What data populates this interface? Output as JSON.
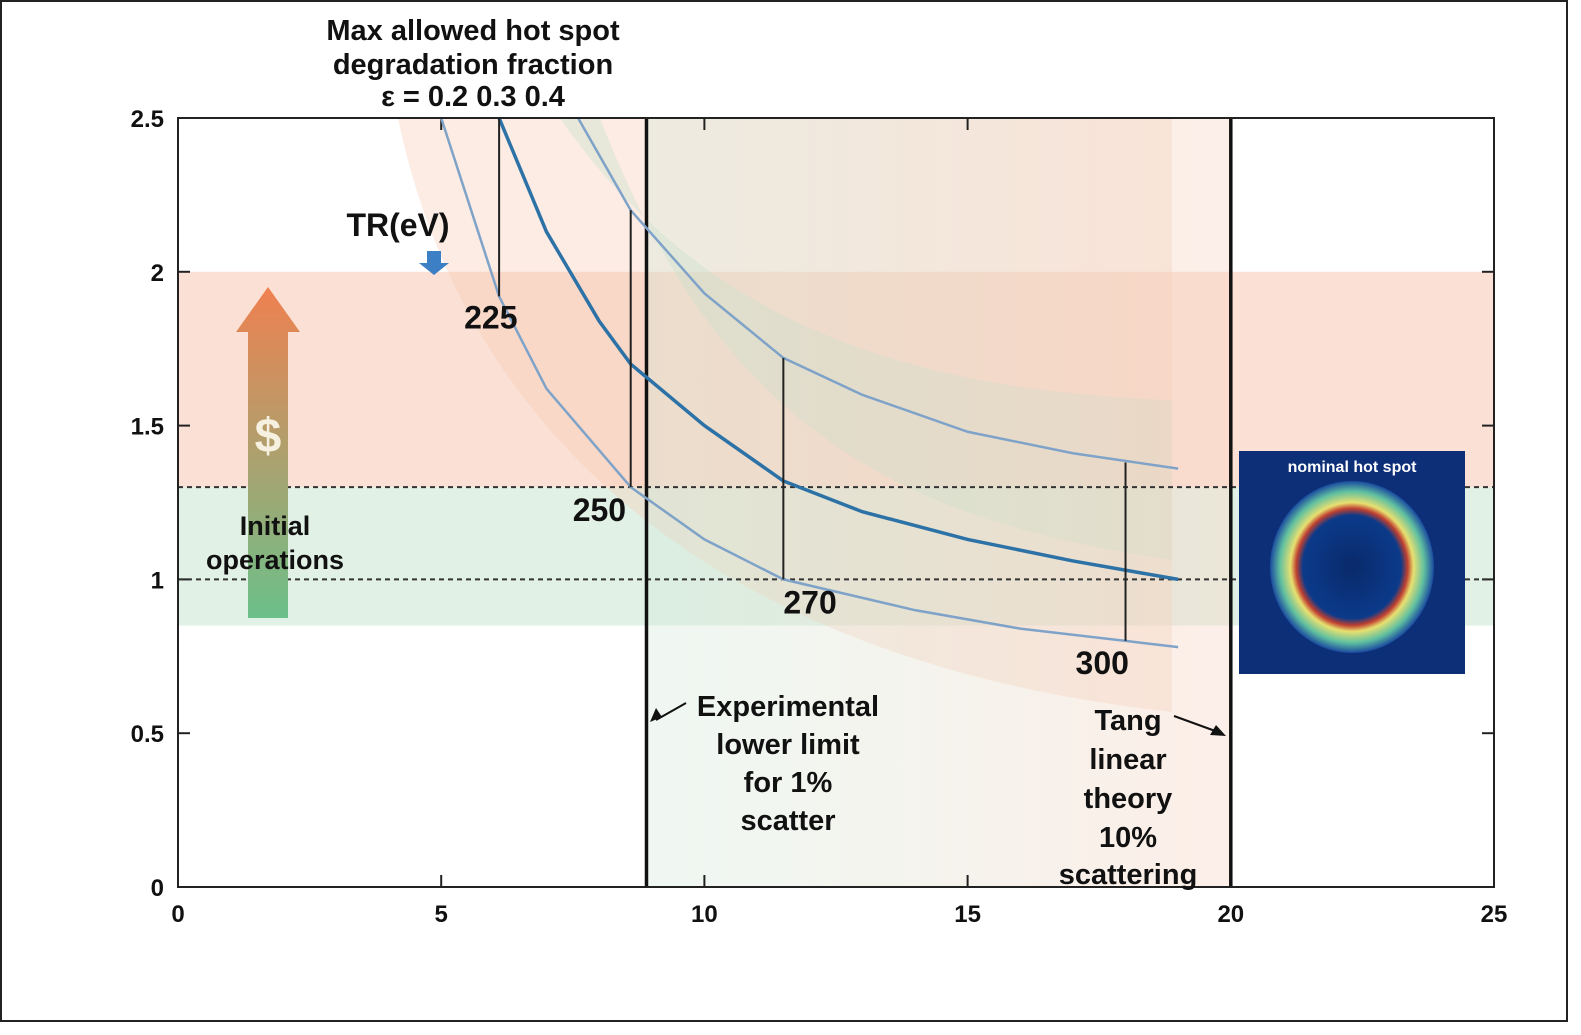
{
  "chart_data": {
    "type": "line",
    "title": [
      "Max allowed hot spot",
      "degradation fraction",
      "ε = 0.2  0.3  0.4"
    ],
    "tr_title": "TR(eV)",
    "xlim": [
      0,
      25
    ],
    "xticks": [
      0,
      5,
      10,
      15,
      20,
      25
    ],
    "ylim": [
      0,
      2.5
    ],
    "yticks": [
      0,
      0.5,
      1,
      1.5,
      2,
      2.5
    ],
    "series": [
      {
        "color": "#7fa3c8",
        "width": 2.5,
        "x": [
          5,
          6.1,
          7,
          8.6,
          10,
          11.5,
          14,
          16,
          18,
          19
        ],
        "values": [
          2.5,
          1.92,
          1.62,
          1.3,
          1.13,
          1.0,
          0.9,
          0.84,
          0.8,
          0.78
        ]
      },
      {
        "color": "#2c72a6",
        "width": 3.5,
        "x": [
          6.1,
          7,
          8,
          8.6,
          10,
          11.5,
          13,
          15,
          17,
          19
        ],
        "values": [
          2.5,
          2.13,
          1.84,
          1.7,
          1.5,
          1.32,
          1.22,
          1.13,
          1.06,
          1.0
        ]
      },
      {
        "color": "#7fa3c8",
        "width": 2.5,
        "x": [
          7.6,
          8.6,
          10,
          11.5,
          13,
          15,
          17,
          19
        ],
        "values": [
          2.5,
          2.2,
          1.93,
          1.72,
          1.6,
          1.48,
          1.41,
          1.36
        ]
      }
    ],
    "tr_lines": [
      {
        "x": 6.1,
        "ylim": [
          1.92,
          2.5
        ],
        "label": "225"
      },
      {
        "x": 8.6,
        "ylim": [
          1.3,
          2.2
        ],
        "label": "250"
      },
      {
        "x": 11.5,
        "ylim": [
          1.0,
          1.72
        ],
        "label": "270"
      },
      {
        "x": 18,
        "ylim": [
          0.8,
          1.38
        ],
        "label": "300"
      }
    ],
    "bands": [
      {
        "ylim": [
          1.3,
          2.0
        ],
        "color": "#fbe1d5"
      },
      {
        "ylim": [
          0.85,
          1.3
        ],
        "color": "#e2f1e6"
      }
    ],
    "hlines": [
      1.3,
      1.0
    ],
    "vlines": [
      8.9,
      20
    ],
    "annotations": {
      "dollar": "$",
      "initial": [
        "Initial",
        "operations"
      ],
      "experimental": [
        "Experimental",
        "lower limit",
        "for 1%",
        "scatter"
      ],
      "tang": [
        "Tang",
        "linear",
        "theory",
        "10%",
        "scattering"
      ],
      "inset": "nominal hot spot"
    }
  }
}
